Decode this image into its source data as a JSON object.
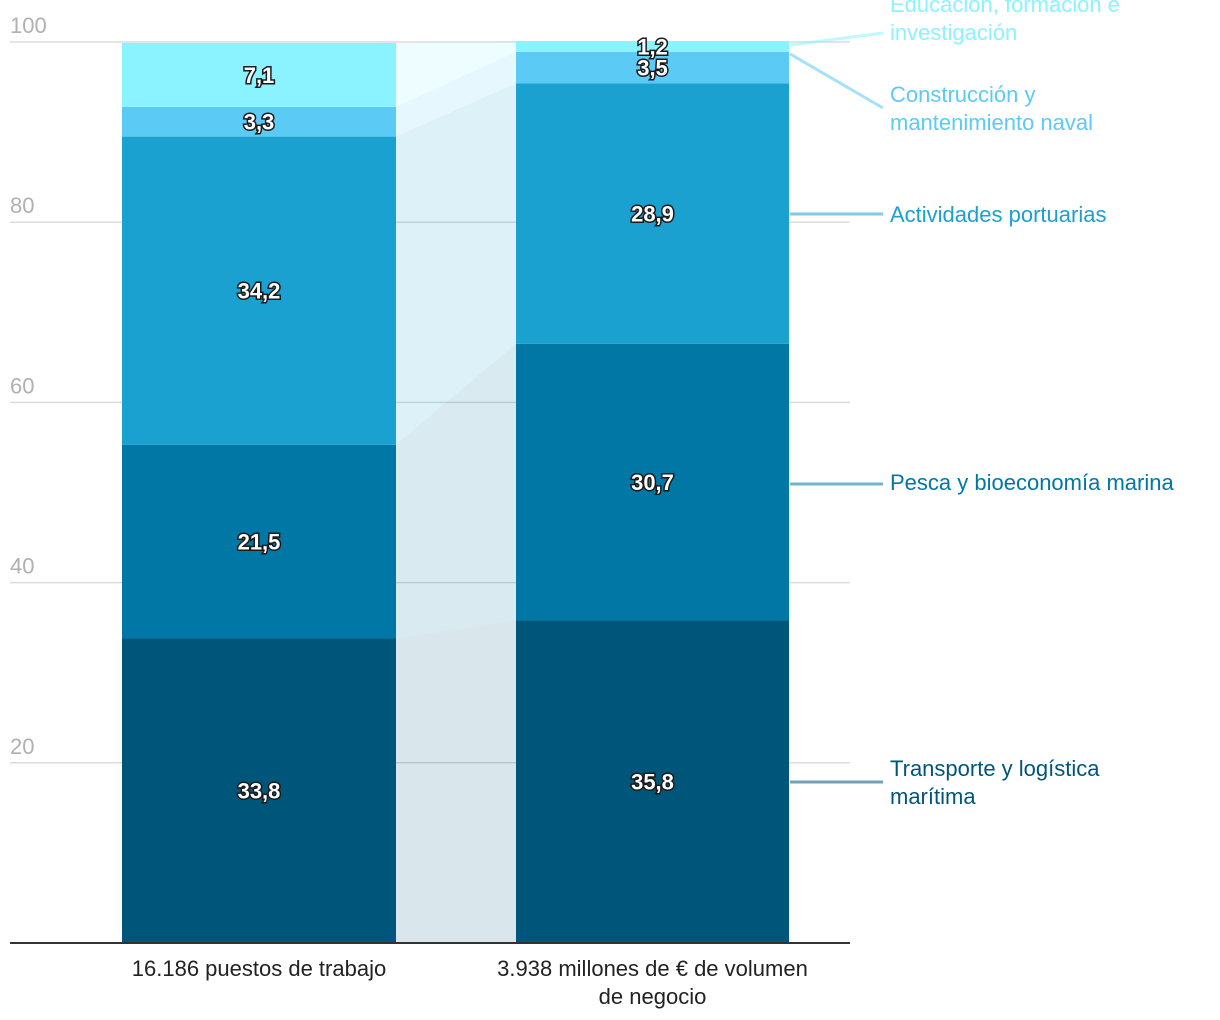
{
  "chart_data": {
    "type": "bar",
    "stacked": true,
    "categories": [
      [
        "16.186 puestos de trabajo"
      ],
      [
        "3.938 millones de € de volumen",
        "de negocio"
      ]
    ],
    "series": [
      {
        "name": [
          "Transporte y logística",
          "marítima"
        ],
        "color": "#00567a",
        "values": [
          33.8,
          35.8
        ],
        "labels": [
          "33,8",
          "35,8"
        ]
      },
      {
        "name": [
          "Pesca y bioeconomía marina"
        ],
        "color": "#0077a4",
        "values": [
          21.5,
          30.7
        ],
        "labels": [
          "21,5",
          "30,7"
        ]
      },
      {
        "name": [
          "Actividades portuarias"
        ],
        "color": "#1aa1cf",
        "values": [
          34.2,
          28.9
        ],
        "labels": [
          "34,2",
          "28,9"
        ]
      },
      {
        "name": [
          "Construcción y",
          "mantenimiento naval"
        ],
        "color": "#5bcbf5",
        "values": [
          3.3,
          3.5
        ],
        "labels": [
          "3,3",
          "3,5"
        ]
      },
      {
        "name": [
          "Educación, formación e",
          "investigación"
        ],
        "color": "#8af3ff",
        "values": [
          7.1,
          1.2
        ],
        "labels": [
          "7,1",
          "1,2"
        ]
      }
    ],
    "yticks": [
      "20",
      "40",
      "60",
      "80",
      "100"
    ],
    "ylim": [
      0,
      100
    ],
    "grid": true,
    "legend": "right, direct labels"
  }
}
